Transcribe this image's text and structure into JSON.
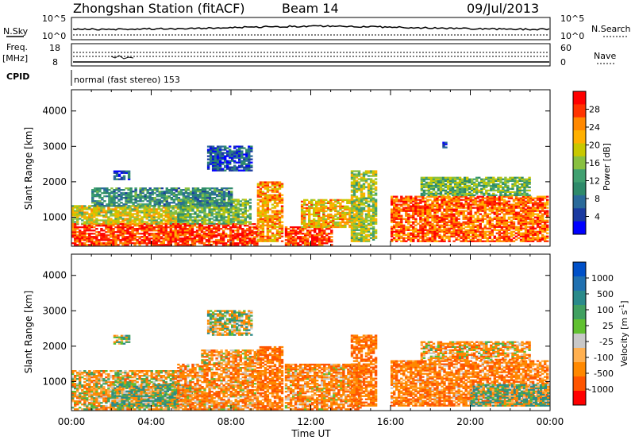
{
  "header": {
    "station": "Zhongshan Station (fitACF)",
    "beam": "Beam 14",
    "date": "09/Jul/2013"
  },
  "top_panels": {
    "nsky_label": "N.Sky",
    "nsky_ticks": [
      "10^5",
      "10^0"
    ],
    "nsearch_label": "N.Search",
    "nsearch_ticks": [
      "10^5",
      "10^0"
    ],
    "freq_label": "Freq.",
    "freq_unit": "[MHz]",
    "freq_ticks": [
      "18",
      "8"
    ],
    "nave_label": "Nave",
    "nave_ticks": [
      "60",
      "0"
    ],
    "cpid_label": "CPID",
    "cpid_text": "normal (fast stereo) 153"
  },
  "chart_data": [
    {
      "type": "heatmap",
      "name": "power",
      "ylabel": "Slant Range [km]",
      "xlabel": "",
      "x_ticks": [
        "00:00",
        "04:00",
        "08:00",
        "12:00",
        "16:00",
        "20:00",
        "00:00"
      ],
      "x_range_hours": [
        0,
        24
      ],
      "y_ticks": [
        "1000",
        "2000",
        "3000",
        "4000"
      ],
      "y_tick_values": [
        1000,
        2000,
        3000,
        4000
      ],
      "ylim": [
        180,
        4600
      ],
      "colorbar_label": "Power [dB]",
      "colorbar_ticks": [
        "28",
        "24",
        "20",
        "16",
        "12",
        "8",
        "4"
      ],
      "colorbar_colors": [
        "#ff0000",
        "#ff3300",
        "#ff8800",
        "#ffb000",
        "#c8c800",
        "#88c040",
        "#40a070",
        "#2e8a6a",
        "#2a6a9a",
        "#1a3aa0",
        "#0000ff"
      ],
      "echo_regions": [
        {
          "t0": 0.0,
          "t1": 9.3,
          "r0": 200,
          "r1": 800,
          "level": 26
        },
        {
          "t0": 0.0,
          "t1": 5.3,
          "r0": 800,
          "r1": 1300,
          "level": 18
        },
        {
          "t0": 5.3,
          "t1": 9.0,
          "r0": 800,
          "r1": 1500,
          "level": 14
        },
        {
          "t0": 1.0,
          "t1": 8.0,
          "r0": 1300,
          "r1": 1800,
          "level": 10
        },
        {
          "t0": 2.1,
          "t1": 2.9,
          "r0": 2050,
          "r1": 2300,
          "level": 6
        },
        {
          "t0": 6.8,
          "t1": 9.0,
          "r0": 2300,
          "r1": 3000,
          "level": 6
        },
        {
          "t0": 9.3,
          "t1": 10.6,
          "r0": 300,
          "r1": 2000,
          "level": 22
        },
        {
          "t0": 10.7,
          "t1": 13.0,
          "r0": 200,
          "r1": 700,
          "level": 26
        },
        {
          "t0": 11.5,
          "t1": 14.5,
          "r0": 700,
          "r1": 1500,
          "level": 20
        },
        {
          "t0": 14.0,
          "t1": 15.2,
          "r0": 300,
          "r1": 2300,
          "level": 16
        },
        {
          "t0": 16.0,
          "t1": 23.9,
          "r0": 300,
          "r1": 1600,
          "level": 24
        },
        {
          "t0": 17.5,
          "t1": 23.0,
          "r0": 1600,
          "r1": 2100,
          "level": 14
        },
        {
          "t0": 18.6,
          "t1": 18.8,
          "r0": 2950,
          "r1": 3100,
          "level": 6
        }
      ]
    },
    {
      "type": "heatmap",
      "name": "velocity",
      "ylabel": "Slant Range [km]",
      "xlabel": "Time UT",
      "x_ticks": [
        "00:00",
        "04:00",
        "08:00",
        "12:00",
        "16:00",
        "20:00",
        "00:00"
      ],
      "x_range_hours": [
        0,
        24
      ],
      "y_ticks": [
        "1000",
        "2000",
        "3000",
        "4000"
      ],
      "y_tick_values": [
        1000,
        2000,
        3000,
        4000
      ],
      "ylim": [
        180,
        4600
      ],
      "colorbar_label": "Velocity [m s^-1]",
      "colorbar_ticks": [
        "1000",
        "500",
        "100",
        "25",
        "-25",
        "-100",
        "-500",
        "-1000"
      ],
      "colorbar_colors": [
        "#0050c8",
        "#2070b0",
        "#2a8a8a",
        "#40a060",
        "#60c030",
        "#c8c8c8",
        "#ffb050",
        "#ff8800",
        "#ff5500",
        "#ff0000"
      ],
      "echo_regions": [
        {
          "t0": 0.0,
          "t1": 5.3,
          "r0": 200,
          "r1": 1300,
          "level": -100
        },
        {
          "t0": 2.0,
          "t1": 6.0,
          "r0": 300,
          "r1": 900,
          "level": 100
        },
        {
          "t0": 5.3,
          "t1": 9.3,
          "r0": 200,
          "r1": 1500,
          "level": -200
        },
        {
          "t0": 6.5,
          "t1": 9.3,
          "r0": 1500,
          "r1": 1900,
          "level": -150
        },
        {
          "t0": 2.1,
          "t1": 2.9,
          "r0": 2050,
          "r1": 2300,
          "level": 50
        },
        {
          "t0": 6.8,
          "t1": 9.0,
          "r0": 2300,
          "r1": 3000,
          "level": 0
        },
        {
          "t0": 9.3,
          "t1": 10.6,
          "r0": 200,
          "r1": 2000,
          "level": -300
        },
        {
          "t0": 10.7,
          "t1": 14.5,
          "r0": 200,
          "r1": 1500,
          "level": -200
        },
        {
          "t0": 14.0,
          "t1": 15.2,
          "r0": 300,
          "r1": 2300,
          "level": -300
        },
        {
          "t0": 16.0,
          "t1": 23.9,
          "r0": 300,
          "r1": 1600,
          "level": -250
        },
        {
          "t0": 20.0,
          "t1": 23.9,
          "r0": 300,
          "r1": 900,
          "level": 100
        },
        {
          "t0": 17.5,
          "t1": 23.0,
          "r0": 1600,
          "r1": 2100,
          "level": -150
        }
      ]
    }
  ]
}
